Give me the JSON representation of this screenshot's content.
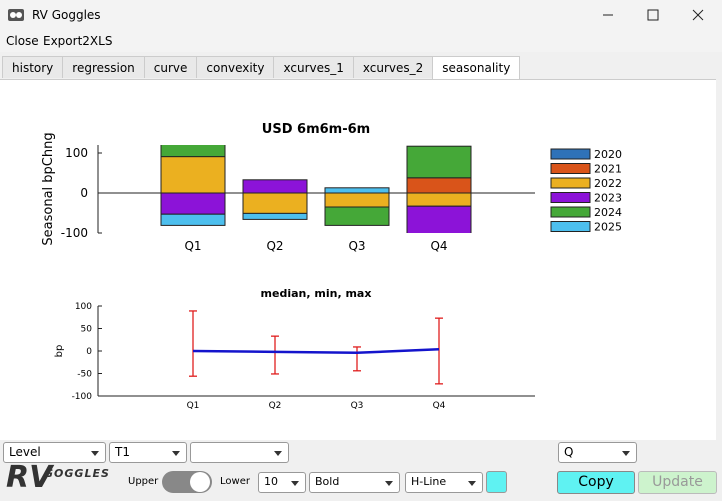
{
  "window": {
    "title": "RV Goggles"
  },
  "menu": [
    "Close",
    "Export2XLS"
  ],
  "tabs": [
    "history",
    "regression",
    "curve",
    "convexity",
    "xcurves_1",
    "xcurves_2",
    "seasonality"
  ],
  "chart_data": [
    {
      "type": "bar",
      "stacked": true,
      "title": "USD 6m6m-6m",
      "y_label": "Seasonal bpChng",
      "categories": [
        "Q1",
        "Q2",
        "Q3",
        "Q4"
      ],
      "series": [
        {
          "name": "2020",
          "color": "#2f72b8",
          "values": [
            0,
            0,
            0,
            0
          ]
        },
        {
          "name": "2021",
          "color": "#d9541a",
          "values": [
            0,
            0,
            0,
            38
          ]
        },
        {
          "name": "2022",
          "color": "#ebb020",
          "values": [
            91,
            -51,
            -35,
            -33
          ]
        },
        {
          "name": "2023",
          "color": "#8c13d8",
          "values": [
            -53,
            33,
            0,
            -70
          ]
        },
        {
          "name": "2024",
          "color": "#45a838",
          "values": [
            31,
            0,
            -46,
            79
          ]
        },
        {
          "name": "2025",
          "color": "#4dbfee",
          "values": [
            -28,
            -15,
            13,
            0
          ]
        }
      ],
      "ylim": [
        -100,
        120
      ],
      "yticks": [
        -100,
        0,
        100
      ],
      "legend": "right"
    },
    {
      "type": "line",
      "title": "median, min, max",
      "y_label": "bp",
      "categories": [
        "Q1",
        "Q2",
        "Q3",
        "Q4"
      ],
      "values": [
        0,
        -2,
        -4,
        4
      ],
      "min": [
        -56,
        -51,
        -44,
        -73
      ],
      "max": [
        89,
        33,
        9,
        73
      ],
      "color": "#1414cc",
      "error_color": "#e01e1e",
      "ylim": [
        -100,
        100
      ],
      "yticks": [
        -100,
        -50,
        0,
        50,
        100
      ]
    }
  ],
  "controls": {
    "measure": "Level",
    "tenor": "T1",
    "period": "Q",
    "logo": "RV",
    "logo_sub": "GOGGLES",
    "upper": "Upper",
    "lower": "Lower",
    "size": 10,
    "weight": "Bold",
    "line_style": "H-Line",
    "copy": "Copy",
    "update": "Update"
  }
}
